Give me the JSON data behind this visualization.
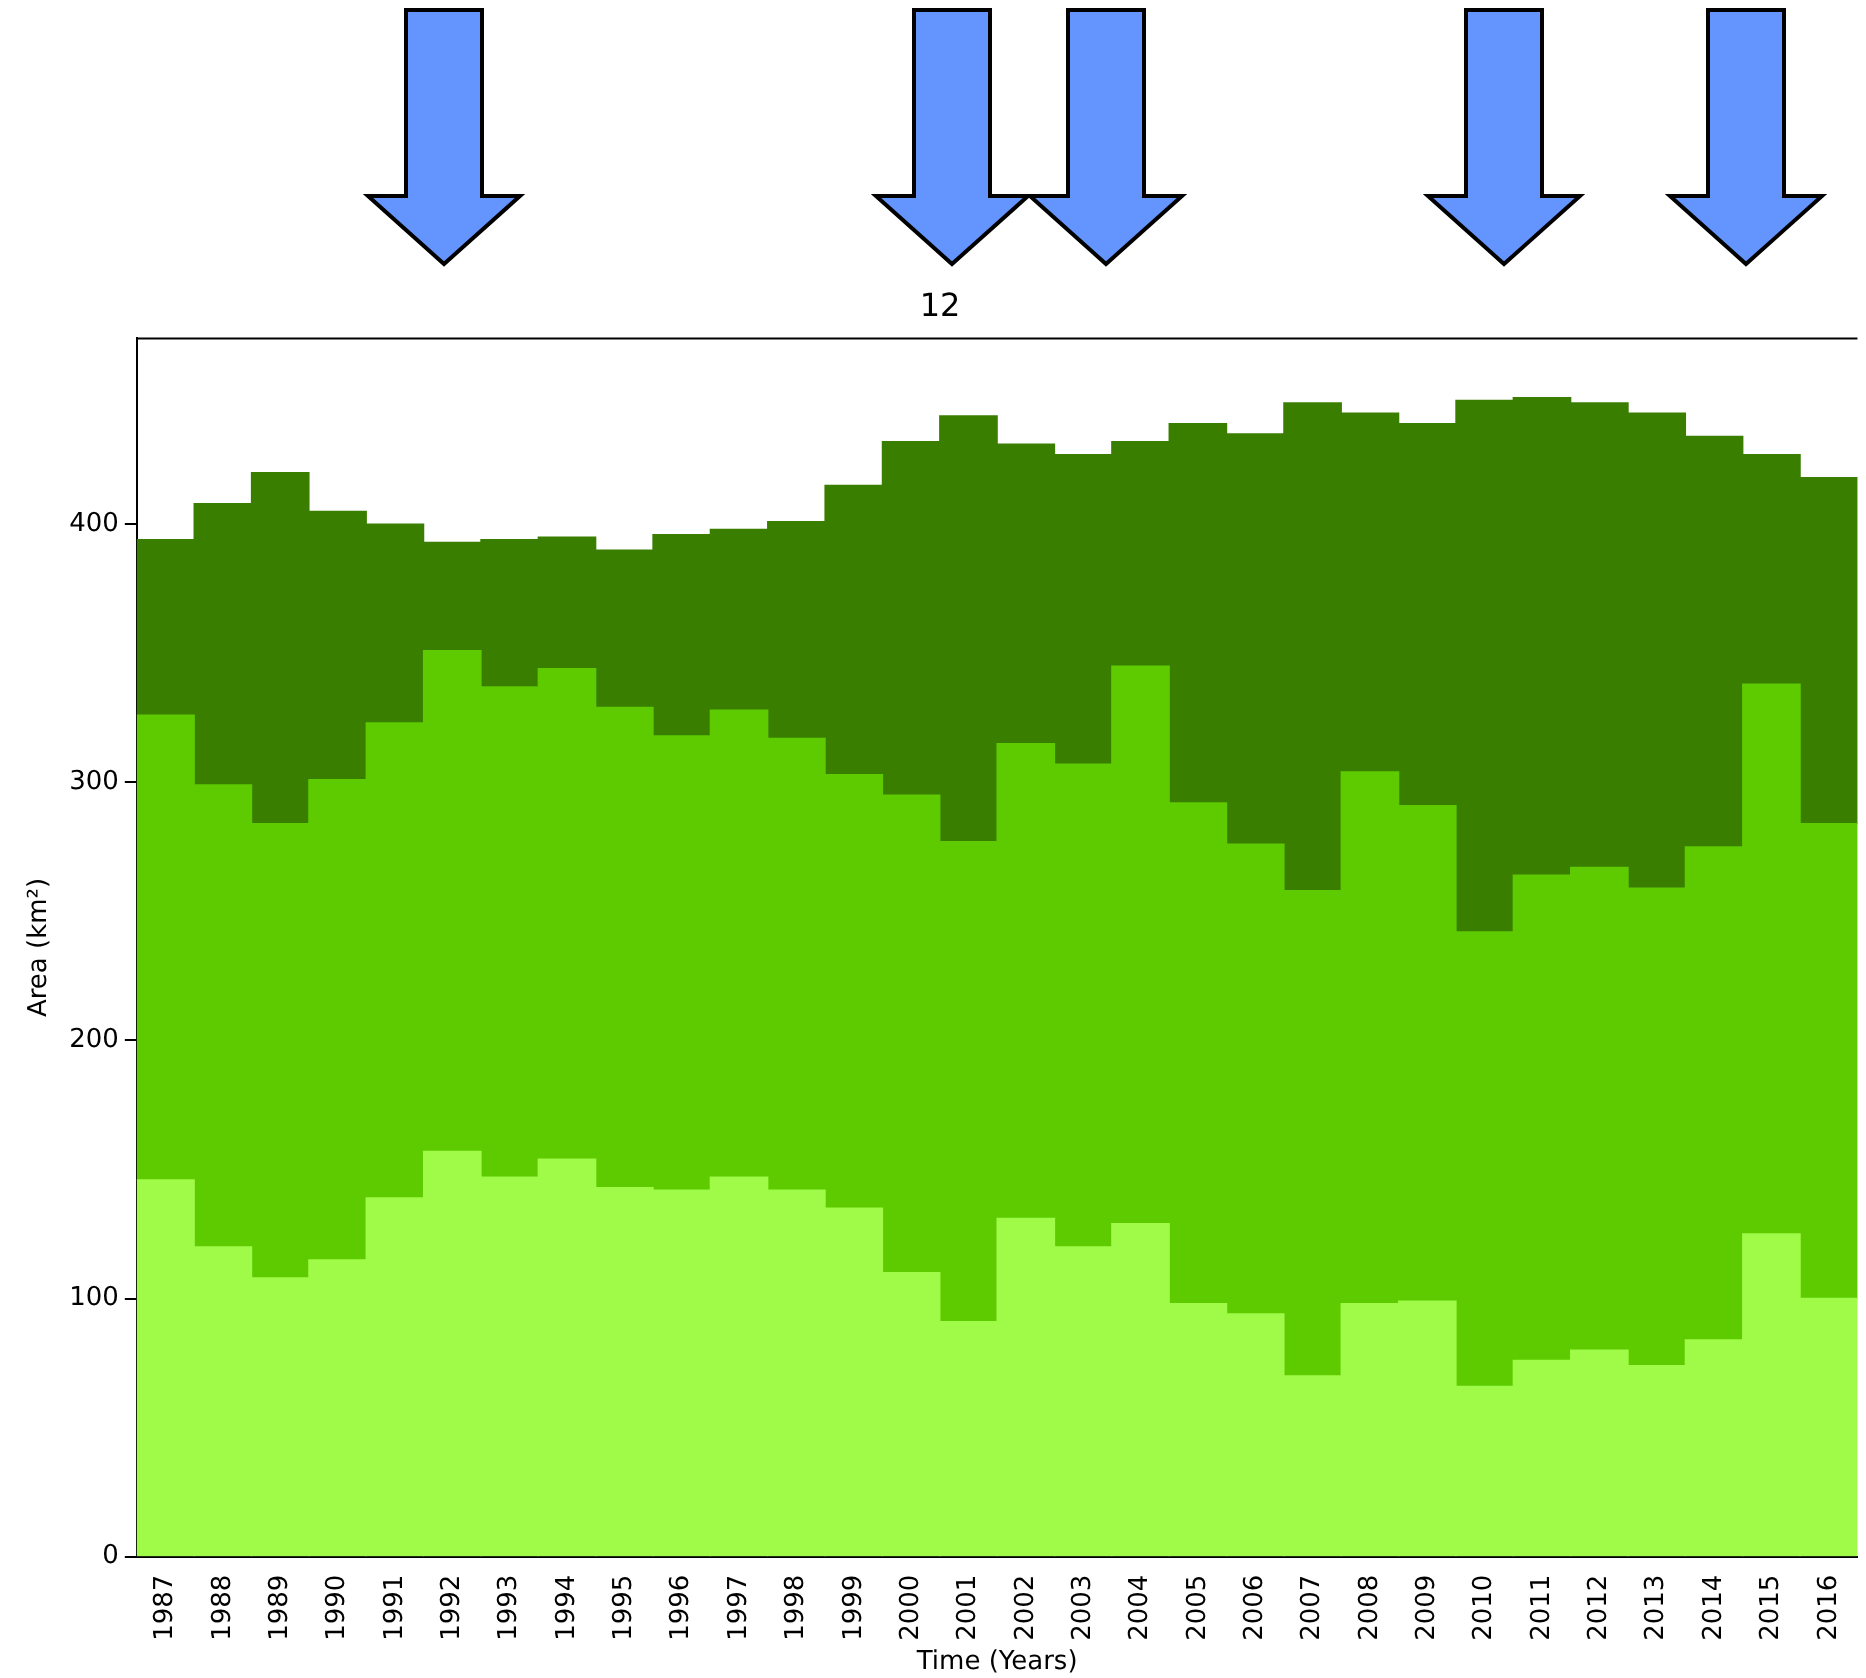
{
  "chart_data": {
    "type": "bar",
    "stacked": true,
    "title": "12",
    "xlabel": "Time (Years)",
    "ylabel": "Area (km²)",
    "categories": [
      "1987",
      "1988",
      "1989",
      "1990",
      "1991",
      "1992",
      "1993",
      "1994",
      "1995",
      "1996",
      "1997",
      "1998",
      "1999",
      "2000",
      "2001",
      "2002",
      "2003",
      "2004",
      "2005",
      "2006",
      "2007",
      "2008",
      "2009",
      "2010",
      "2011",
      "2012",
      "2013",
      "2014",
      "2015",
      "2016"
    ],
    "series": [
      {
        "color": "#a0fa48",
        "values": [
          146,
          120,
          108,
          115,
          139,
          157,
          147,
          154,
          143,
          142,
          147,
          142,
          135,
          110,
          91,
          131,
          120,
          129,
          98,
          94,
          70,
          98,
          99,
          66,
          76,
          80,
          74,
          84,
          125,
          100
        ]
      },
      {
        "color": "#5dcb00",
        "values": [
          180,
          179,
          176,
          186,
          184,
          194,
          190,
          190,
          186,
          176,
          181,
          175,
          168,
          185,
          186,
          184,
          187,
          216,
          194,
          182,
          188,
          206,
          192,
          176,
          188,
          187,
          185,
          191,
          213,
          184
        ]
      },
      {
        "color": "#3a7e00",
        "values": [
          68,
          109,
          136,
          104,
          77,
          42,
          57,
          51,
          61,
          78,
          70,
          84,
          112,
          137,
          165,
          116,
          120,
          87,
          147,
          159,
          189,
          139,
          148,
          206,
          185,
          180,
          184,
          159,
          89,
          134
        ]
      }
    ],
    "ylim": [
      0,
      472
    ],
    "yticks": [
      0,
      100,
      200,
      300,
      400
    ],
    "grid": false,
    "legend": false
  }
}
